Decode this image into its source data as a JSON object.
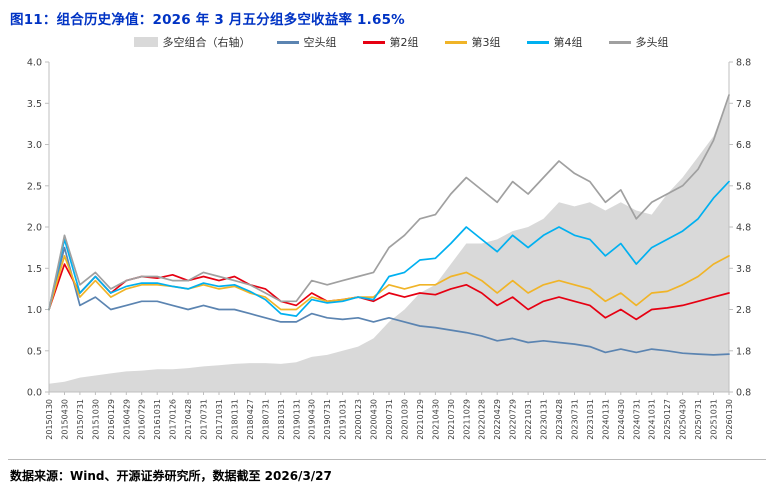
{
  "header": {
    "title": "图11：组合历史净值：2026 年 3 月五分组多空收益率 1.65%",
    "title_color": "#0033c4"
  },
  "footer": {
    "text": "数据来源：Wind、开源证券研究所，数据截至 2026/3/27"
  },
  "chart_data": {
    "type": "line",
    "title": "组合历史净值",
    "legend_position": "top",
    "grid": false,
    "x_label_rotation": -90,
    "left_axis": {
      "min": 0,
      "max": 4,
      "ticks": [
        "0.0",
        "0.5",
        "1.0",
        "1.5",
        "2.0",
        "2.5",
        "3.0",
        "3.5",
        "4.0"
      ]
    },
    "right_axis": {
      "min": 0.8,
      "max": 8.8,
      "ticks": [
        "0.8",
        "1.8",
        "2.8",
        "3.8",
        "4.8",
        "5.8",
        "6.8",
        "7.8",
        "8.8"
      ]
    },
    "categories": [
      "20150130",
      "20150430",
      "20150731",
      "20151030",
      "20160129",
      "20160429",
      "20160729",
      "20161031",
      "20170126",
      "20170428",
      "20170731",
      "20171031",
      "20180131",
      "20180427",
      "20180731",
      "20181031",
      "20190131",
      "20190430",
      "20190731",
      "20191031",
      "20200123",
      "20200430",
      "20200731",
      "20201030",
      "20210129",
      "20210430",
      "20210730",
      "20211029",
      "20220128",
      "20220429",
      "20220729",
      "20221031",
      "20230131",
      "20230428",
      "20230731",
      "20231031",
      "20240131",
      "20240430",
      "20240731",
      "20241031",
      "20250127",
      "20250430",
      "20250731",
      "20251031",
      "20260130"
    ],
    "series": [
      {
        "id": "long-short-combo",
        "name": "多空组合（右轴）",
        "kind": "area",
        "axis": "right",
        "color": "#d9d9d9",
        "values": [
          1.0,
          1.05,
          1.15,
          1.2,
          1.25,
          1.3,
          1.32,
          1.35,
          1.35,
          1.38,
          1.42,
          1.45,
          1.48,
          1.5,
          1.5,
          1.48,
          1.52,
          1.65,
          1.7,
          1.8,
          1.9,
          2.1,
          2.5,
          2.8,
          3.2,
          3.4,
          3.9,
          4.4,
          4.4,
          4.5,
          4.7,
          4.8,
          5.0,
          5.4,
          5.3,
          5.4,
          5.2,
          5.4,
          5.2,
          5.1,
          5.6,
          6.0,
          6.5,
          7.0,
          8.0
        ]
      },
      {
        "id": "short-group",
        "name": "空头组",
        "kind": "line",
        "axis": "left",
        "color": "#5b84b1",
        "values": [
          1.0,
          1.75,
          1.05,
          1.15,
          1.0,
          1.05,
          1.1,
          1.1,
          1.05,
          1.0,
          1.05,
          1.0,
          1.0,
          0.95,
          0.9,
          0.85,
          0.85,
          0.95,
          0.9,
          0.88,
          0.9,
          0.85,
          0.9,
          0.85,
          0.8,
          0.78,
          0.75,
          0.72,
          0.68,
          0.62,
          0.65,
          0.6,
          0.62,
          0.6,
          0.58,
          0.55,
          0.48,
          0.52,
          0.48,
          0.52,
          0.5,
          0.47,
          0.46,
          0.45,
          0.46
        ]
      },
      {
        "id": "group-2",
        "name": "第2组",
        "kind": "line",
        "axis": "left",
        "color": "#e60012",
        "values": [
          1.0,
          1.55,
          1.2,
          1.4,
          1.2,
          1.35,
          1.4,
          1.38,
          1.42,
          1.35,
          1.4,
          1.35,
          1.4,
          1.3,
          1.25,
          1.1,
          1.05,
          1.2,
          1.1,
          1.12,
          1.15,
          1.1,
          1.2,
          1.15,
          1.2,
          1.18,
          1.25,
          1.3,
          1.2,
          1.05,
          1.15,
          1.0,
          1.1,
          1.15,
          1.1,
          1.05,
          0.9,
          1.0,
          0.88,
          1.0,
          1.02,
          1.05,
          1.1,
          1.15,
          1.2
        ]
      },
      {
        "id": "group-3",
        "name": "第3组",
        "kind": "line",
        "axis": "left",
        "color": "#f0b428",
        "values": [
          1.0,
          1.65,
          1.15,
          1.35,
          1.15,
          1.25,
          1.3,
          1.3,
          1.28,
          1.25,
          1.3,
          1.25,
          1.28,
          1.2,
          1.15,
          1.0,
          1.0,
          1.15,
          1.1,
          1.12,
          1.15,
          1.15,
          1.3,
          1.25,
          1.3,
          1.3,
          1.4,
          1.45,
          1.35,
          1.2,
          1.35,
          1.2,
          1.3,
          1.35,
          1.3,
          1.25,
          1.1,
          1.2,
          1.05,
          1.2,
          1.22,
          1.3,
          1.4,
          1.55,
          1.65
        ]
      },
      {
        "id": "group-4",
        "name": "第4组",
        "kind": "line",
        "axis": "left",
        "color": "#00b0f0",
        "values": [
          1.0,
          1.85,
          1.2,
          1.4,
          1.2,
          1.28,
          1.32,
          1.32,
          1.28,
          1.25,
          1.32,
          1.28,
          1.3,
          1.22,
          1.12,
          0.95,
          0.92,
          1.12,
          1.08,
          1.1,
          1.15,
          1.12,
          1.4,
          1.45,
          1.6,
          1.62,
          1.8,
          2.0,
          1.85,
          1.7,
          1.9,
          1.75,
          1.9,
          2.0,
          1.9,
          1.85,
          1.65,
          1.8,
          1.55,
          1.75,
          1.85,
          1.95,
          2.1,
          2.35,
          2.55
        ]
      },
      {
        "id": "long-group",
        "name": "多头组",
        "kind": "line",
        "axis": "left",
        "color": "#a0a0a0",
        "values": [
          1.0,
          1.9,
          1.3,
          1.45,
          1.25,
          1.35,
          1.4,
          1.4,
          1.35,
          1.35,
          1.45,
          1.4,
          1.35,
          1.3,
          1.2,
          1.1,
          1.1,
          1.35,
          1.3,
          1.35,
          1.4,
          1.45,
          1.75,
          1.9,
          2.1,
          2.15,
          2.4,
          2.6,
          2.45,
          2.3,
          2.55,
          2.4,
          2.6,
          2.8,
          2.65,
          2.55,
          2.3,
          2.45,
          2.1,
          2.3,
          2.4,
          2.5,
          2.7,
          3.05,
          3.6
        ]
      }
    ]
  }
}
